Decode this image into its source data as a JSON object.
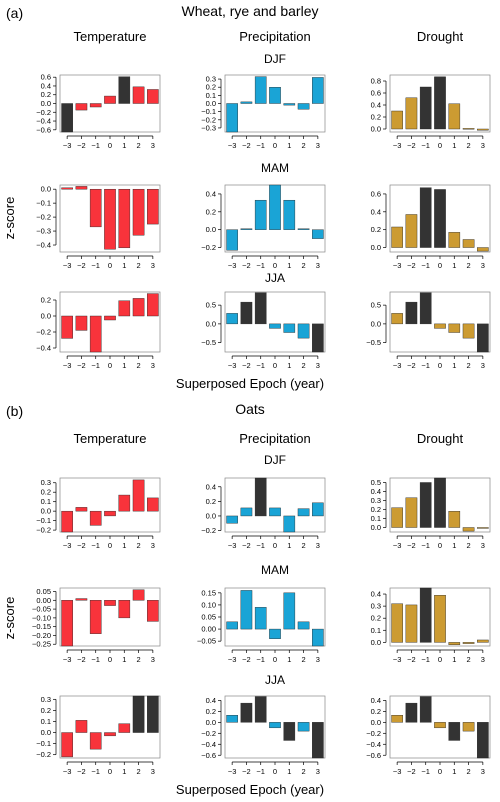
{
  "colors": {
    "temperature": "#f8333b",
    "precipitation": "#1aa4d6",
    "drought": "#cc9b32",
    "significant": "#333333",
    "axis": "#000000",
    "frame": "#888888"
  },
  "figure": {
    "x_axis_label": "Superposed Epoch (year)",
    "y_axis_label": "z-score",
    "columns": [
      "Temperature",
      "Precipitation",
      "Drought"
    ],
    "seasons": [
      "DJF",
      "MAM",
      "JJA"
    ]
  },
  "chart_data": [
    {
      "type": "bar",
      "panel_label": "(a)",
      "title": "Wheat, rye and barley",
      "categories": [
        "−3",
        "−2",
        "−1",
        "0",
        "1",
        "2",
        "3"
      ],
      "rows": [
        {
          "season": "DJF",
          "charts": [
            {
              "variable": "Temperature",
              "color_key": "temperature",
              "ylim": [
                -0.65,
                0.65
              ],
              "yticks": [
                -0.6,
                -0.4,
                -0.2,
                0.0,
                0.2,
                0.4,
                0.6
              ],
              "ytick_labels": [
                "−0.6",
                "−0.4",
                "−0.2",
                "0.0",
                "0.2",
                "0.4",
                "0.6"
              ],
              "values": [
                -0.65,
                -0.15,
                -0.08,
                0.17,
                0.61,
                0.38,
                0.32
              ],
              "significant": [
                true,
                false,
                false,
                false,
                true,
                false,
                false
              ]
            },
            {
              "variable": "Precipitation",
              "color_key": "precipitation",
              "ylim": [
                -0.35,
                0.35
              ],
              "yticks": [
                -0.3,
                -0.2,
                -0.1,
                0.0,
                0.1,
                0.2,
                0.3
              ],
              "ytick_labels": [
                "−0.3",
                "−0.2",
                "−0.1",
                "0.0",
                "0.1",
                "0.2",
                "0.3"
              ],
              "values": [
                -0.35,
                0.02,
                0.33,
                0.2,
                -0.02,
                -0.07,
                0.32
              ],
              "significant": [
                false,
                false,
                false,
                false,
                false,
                false,
                false
              ]
            },
            {
              "variable": "Drought",
              "color_key": "drought",
              "ylim": [
                -0.05,
                0.9
              ],
              "yticks": [
                0.0,
                0.2,
                0.4,
                0.6,
                0.8
              ],
              "ytick_labels": [
                "0.0",
                "0.2",
                "0.4",
                "0.6",
                "0.8"
              ],
              "values": [
                0.3,
                0.52,
                0.7,
                0.87,
                0.42,
                0.01,
                -0.02
              ],
              "significant": [
                false,
                false,
                true,
                true,
                false,
                false,
                false
              ]
            }
          ]
        },
        {
          "season": "MAM",
          "charts": [
            {
              "variable": "Temperature",
              "color_key": "temperature",
              "ylim": [
                -0.45,
                0.03
              ],
              "yticks": [
                -0.4,
                -0.3,
                -0.2,
                -0.1,
                0.0
              ],
              "ytick_labels": [
                "−0.4",
                "−0.3",
                "−0.2",
                "−0.1",
                "0.0"
              ],
              "values": [
                0.01,
                0.02,
                -0.27,
                -0.43,
                -0.42,
                -0.33,
                -0.25
              ],
              "significant": [
                false,
                false,
                false,
                false,
                false,
                false,
                false
              ]
            },
            {
              "variable": "Precipitation",
              "color_key": "precipitation",
              "ylim": [
                -0.25,
                0.5
              ],
              "yticks": [
                -0.2,
                0.0,
                0.2,
                0.4
              ],
              "ytick_labels": [
                "−0.2",
                "0.0",
                "0.2",
                "0.4"
              ],
              "values": [
                -0.23,
                0.01,
                0.33,
                0.5,
                0.33,
                0.01,
                -0.1
              ],
              "significant": [
                false,
                false,
                false,
                false,
                false,
                false,
                false
              ]
            },
            {
              "variable": "Drought",
              "color_key": "drought",
              "ylim": [
                -0.05,
                0.7
              ],
              "yticks": [
                0.0,
                0.2,
                0.4,
                0.6
              ],
              "ytick_labels": [
                "0.0",
                "0.2",
                "0.4",
                "0.6"
              ],
              "values": [
                0.23,
                0.37,
                0.67,
                0.65,
                0.17,
                0.09,
                -0.04
              ],
              "significant": [
                false,
                false,
                true,
                true,
                false,
                false,
                false
              ]
            }
          ]
        },
        {
          "season": "JJA",
          "charts": [
            {
              "variable": "Temperature",
              "color_key": "temperature",
              "ylim": [
                -0.45,
                0.3
              ],
              "yticks": [
                -0.4,
                -0.2,
                0.0,
                0.2
              ],
              "ytick_labels": [
                "−0.4",
                "−0.2",
                "0.0",
                "0.2"
              ],
              "values": [
                -0.28,
                -0.18,
                -0.45,
                -0.05,
                0.19,
                0.22,
                0.28
              ],
              "significant": [
                false,
                false,
                false,
                false,
                false,
                false,
                false
              ]
            },
            {
              "variable": "Precipitation",
              "color_key": "precipitation",
              "ylim": [
                -0.75,
                0.85
              ],
              "yticks": [
                -0.5,
                0.0,
                0.5
              ],
              "ytick_labels": [
                "−0.5",
                "0.0",
                "0.5"
              ],
              "values": [
                0.28,
                0.58,
                0.83,
                -0.12,
                -0.23,
                -0.38,
                -0.75
              ],
              "significant": [
                false,
                true,
                true,
                false,
                false,
                false,
                true
              ]
            },
            {
              "variable": "Drought",
              "color_key": "drought",
              "ylim": [
                -0.75,
                0.85
              ],
              "yticks": [
                -0.5,
                0.0,
                0.5
              ],
              "ytick_labels": [
                "−0.5",
                "0.0",
                "0.5"
              ],
              "values": [
                0.28,
                0.58,
                0.83,
                -0.12,
                -0.23,
                -0.38,
                -0.75
              ],
              "significant": [
                false,
                true,
                true,
                false,
                false,
                false,
                true
              ]
            }
          ]
        }
      ]
    },
    {
      "type": "bar",
      "panel_label": "(b)",
      "title": "Oats",
      "categories": [
        "−3",
        "−2",
        "−1",
        "0",
        "1",
        "2",
        "3"
      ],
      "rows": [
        {
          "season": "DJF",
          "charts": [
            {
              "variable": "Temperature",
              "color_key": "temperature",
              "ylim": [
                -0.22,
                0.35
              ],
              "yticks": [
                -0.2,
                -0.1,
                0.0,
                0.1,
                0.2,
                0.3
              ],
              "ytick_labels": [
                "−0.2",
                "−0.1",
                "0.0",
                "0.1",
                "0.2",
                "0.3"
              ],
              "values": [
                -0.22,
                0.04,
                -0.15,
                -0.05,
                0.17,
                0.33,
                0.14
              ],
              "significant": [
                false,
                false,
                false,
                false,
                false,
                false,
                false
              ]
            },
            {
              "variable": "Precipitation",
              "color_key": "precipitation",
              "ylim": [
                -0.22,
                0.52
              ],
              "yticks": [
                -0.2,
                0.0,
                0.2,
                0.4
              ],
              "ytick_labels": [
                "−0.2",
                "0.0",
                "0.2",
                "0.4"
              ],
              "values": [
                -0.1,
                0.11,
                0.52,
                0.11,
                -0.22,
                0.1,
                0.18
              ],
              "significant": [
                false,
                false,
                true,
                false,
                false,
                false,
                false
              ]
            },
            {
              "variable": "Drought",
              "color_key": "drought",
              "ylim": [
                -0.05,
                0.55
              ],
              "yticks": [
                0.0,
                0.1,
                0.2,
                0.3,
                0.4,
                0.5
              ],
              "ytick_labels": [
                "0.0",
                "0.1",
                "0.2",
                "0.3",
                "0.4",
                "0.5"
              ],
              "values": [
                0.22,
                0.33,
                0.5,
                0.55,
                0.18,
                -0.04,
                -0.01
              ],
              "significant": [
                false,
                false,
                true,
                true,
                false,
                false,
                false
              ]
            }
          ]
        },
        {
          "season": "MAM",
          "charts": [
            {
              "variable": "Temperature",
              "color_key": "temperature",
              "ylim": [
                -0.26,
                0.07
              ],
              "yticks": [
                -0.25,
                -0.2,
                -0.15,
                -0.1,
                -0.05,
                0.0,
                0.05
              ],
              "ytick_labels": [
                "−0.25",
                "−0.20",
                "−0.15",
                "−0.10",
                "−0.05",
                "0.00",
                "0.05"
              ],
              "values": [
                -0.26,
                0.01,
                -0.19,
                -0.03,
                -0.1,
                0.06,
                -0.12
              ],
              "significant": [
                false,
                false,
                false,
                false,
                false,
                false,
                false
              ]
            },
            {
              "variable": "Precipitation",
              "color_key": "precipitation",
              "ylim": [
                -0.07,
                0.17
              ],
              "yticks": [
                -0.05,
                0.0,
                0.05,
                0.1,
                0.15
              ],
              "ytick_labels": [
                "−0.05",
                "0.00",
                "0.05",
                "0.10",
                "0.15"
              ],
              "values": [
                0.03,
                0.16,
                0.09,
                -0.04,
                0.15,
                0.03,
                -0.07
              ],
              "significant": [
                false,
                false,
                false,
                false,
                false,
                false,
                false
              ]
            },
            {
              "variable": "Drought",
              "color_key": "drought",
              "ylim": [
                -0.03,
                0.45
              ],
              "yticks": [
                0.0,
                0.1,
                0.2,
                0.3,
                0.4
              ],
              "ytick_labels": [
                "0.0",
                "0.1",
                "0.2",
                "0.3",
                "0.4"
              ],
              "values": [
                0.32,
                0.31,
                0.45,
                0.39,
                -0.02,
                -0.01,
                0.02
              ],
              "significant": [
                false,
                false,
                true,
                false,
                false,
                false,
                false
              ]
            }
          ]
        },
        {
          "season": "JJA",
          "charts": [
            {
              "variable": "Temperature",
              "color_key": "temperature",
              "ylim": [
                -0.23,
                0.33
              ],
              "yticks": [
                -0.2,
                -0.1,
                0.0,
                0.1,
                0.2,
                0.3
              ],
              "ytick_labels": [
                "−0.2",
                "−0.1",
                "0.0",
                "0.1",
                "0.2",
                "0.3"
              ],
              "values": [
                -0.22,
                0.11,
                -0.15,
                -0.03,
                0.08,
                0.33,
                0.33
              ],
              "significant": [
                false,
                false,
                false,
                false,
                false,
                true,
                true
              ]
            },
            {
              "variable": "Precipitation",
              "color_key": "precipitation",
              "ylim": [
                -0.65,
                0.48
              ],
              "yticks": [
                -0.6,
                -0.4,
                -0.2,
                0.0,
                0.2,
                0.4
              ],
              "ytick_labels": [
                "−0.6",
                "−0.4",
                "−0.2",
                "0.0",
                "0.2",
                "0.4"
              ],
              "values": [
                0.13,
                0.35,
                0.47,
                -0.1,
                -0.33,
                -0.16,
                -0.65
              ],
              "significant": [
                false,
                true,
                true,
                false,
                true,
                false,
                true
              ]
            },
            {
              "variable": "Drought",
              "color_key": "drought",
              "ylim": [
                -0.65,
                0.48
              ],
              "yticks": [
                -0.6,
                -0.4,
                -0.2,
                0.0,
                0.2,
                0.4
              ],
              "ytick_labels": [
                "−0.6",
                "−0.4",
                "−0.2",
                "0.0",
                "0.2",
                "0.4"
              ],
              "values": [
                0.13,
                0.35,
                0.47,
                -0.1,
                -0.33,
                -0.16,
                -0.65
              ],
              "significant": [
                false,
                true,
                true,
                false,
                true,
                false,
                true
              ]
            }
          ]
        }
      ]
    }
  ]
}
